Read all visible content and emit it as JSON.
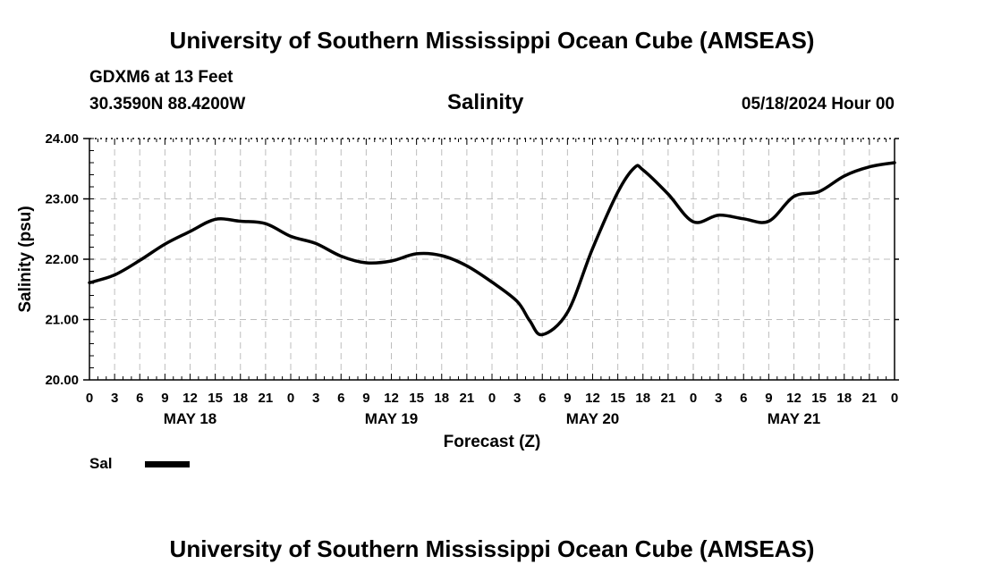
{
  "header": {
    "title_top": "University of Southern Mississippi Ocean Cube (AMSEAS)",
    "title_bottom": "University of Southern Mississippi Ocean Cube (AMSEAS)",
    "station": "GDXM6 at 13 Feet",
    "location": "30.3590N  88.4200W",
    "subtitle": "Salinity",
    "datetime": "05/18/2024 Hour 00"
  },
  "legend": {
    "label": "Sal",
    "color": "#000000"
  },
  "chart_data": {
    "type": "line",
    "title": "Salinity",
    "xlabel": "Forecast (Z)",
    "ylabel": "Salinity (psu)",
    "xlim": [
      0,
      96
    ],
    "ylim": [
      20.0,
      24.0
    ],
    "x_step_hours": 3,
    "y_ticks": [
      "20.00",
      "21.00",
      "22.00",
      "23.00",
      "24.00"
    ],
    "y_tick_values": [
      20.0,
      21.0,
      22.0,
      23.0,
      24.0
    ],
    "x_tick_labels": [
      "0",
      "3",
      "6",
      "9",
      "12",
      "15",
      "18",
      "21",
      "0",
      "3",
      "6",
      "9",
      "12",
      "15",
      "18",
      "21",
      "0",
      "3",
      "6",
      "9",
      "12",
      "15",
      "18",
      "21",
      "0",
      "3",
      "6",
      "9",
      "12",
      "15",
      "18",
      "21",
      "0"
    ],
    "day_labels": [
      {
        "label": "MAY 18",
        "hour": 12
      },
      {
        "label": "MAY 19",
        "hour": 36
      },
      {
        "label": "MAY 20",
        "hour": 60
      },
      {
        "label": "MAY 21",
        "hour": 84
      }
    ],
    "grid": true,
    "series": [
      {
        "name": "Sal",
        "x": [
          0,
          3,
          6,
          9,
          12,
          15,
          18,
          21,
          24,
          27,
          30,
          33,
          36,
          39,
          42,
          45,
          48,
          51,
          52.5,
          54,
          57,
          60,
          63,
          65,
          66,
          69,
          72,
          75,
          78,
          81,
          84,
          87,
          90,
          93,
          96
        ],
        "values": [
          21.61,
          21.74,
          21.98,
          22.25,
          22.46,
          22.66,
          22.63,
          22.59,
          22.38,
          22.26,
          22.05,
          21.94,
          21.97,
          22.09,
          22.06,
          21.89,
          21.62,
          21.3,
          20.98,
          20.75,
          21.12,
          22.18,
          23.11,
          23.52,
          23.48,
          23.08,
          22.62,
          22.73,
          22.67,
          22.63,
          23.04,
          23.12,
          23.38,
          23.53,
          23.6
        ]
      }
    ]
  }
}
